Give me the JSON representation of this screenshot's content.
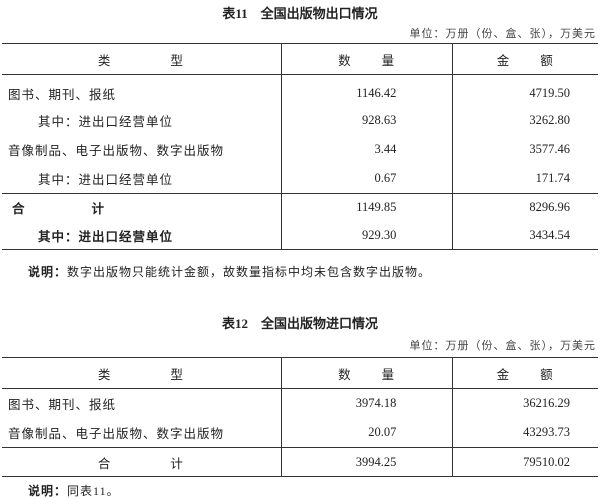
{
  "table11": {
    "title": "表11　全国出版物出口情况",
    "unit": "单位：万册（份、盒、张），万美元",
    "headers": [
      "类　　　　型",
      "数　　量",
      "金　　额"
    ],
    "rows": [
      {
        "type": "图书、期刊、报纸",
        "quantity": "1146.42",
        "amount": "4719.50"
      },
      {
        "type": "其中：进出口经营单位",
        "quantity": "928.63",
        "amount": "3262.80"
      },
      {
        "type": "音像制品、电子出版物、数字出版物",
        "quantity": "3.44",
        "amount": "3577.46"
      },
      {
        "type": "其中：进出口经营单位",
        "quantity": "0.67",
        "amount": "171.74"
      }
    ],
    "totals": [
      {
        "type": "合　　计",
        "quantity": "1149.85",
        "amount": "8296.96"
      },
      {
        "type": "其中：进出口经营单位",
        "quantity": "929.30",
        "amount": "3434.54"
      }
    ],
    "note_label": "说明：",
    "note": "数字出版物只能统计金额，故数量指标中均未包含数字出版物。"
  },
  "table12": {
    "title": "表12　全国出版物进口情况",
    "unit": "单位：万册（份、盒、张），万美元",
    "headers": [
      "类　　　　型",
      "数　　量",
      "金　　额"
    ],
    "rows": [
      {
        "type": "图书、期刊、报纸",
        "quantity": "3974.18",
        "amount": "36216.29"
      },
      {
        "type": "音像制品、电子出版物、数字出版物",
        "quantity": "20.07",
        "amount": "43293.73"
      }
    ],
    "totals": [
      {
        "type": "合　　　　计",
        "quantity": "3994.25",
        "amount": "79510.02"
      }
    ],
    "note_label": "说明：",
    "note": "同表11。"
  }
}
